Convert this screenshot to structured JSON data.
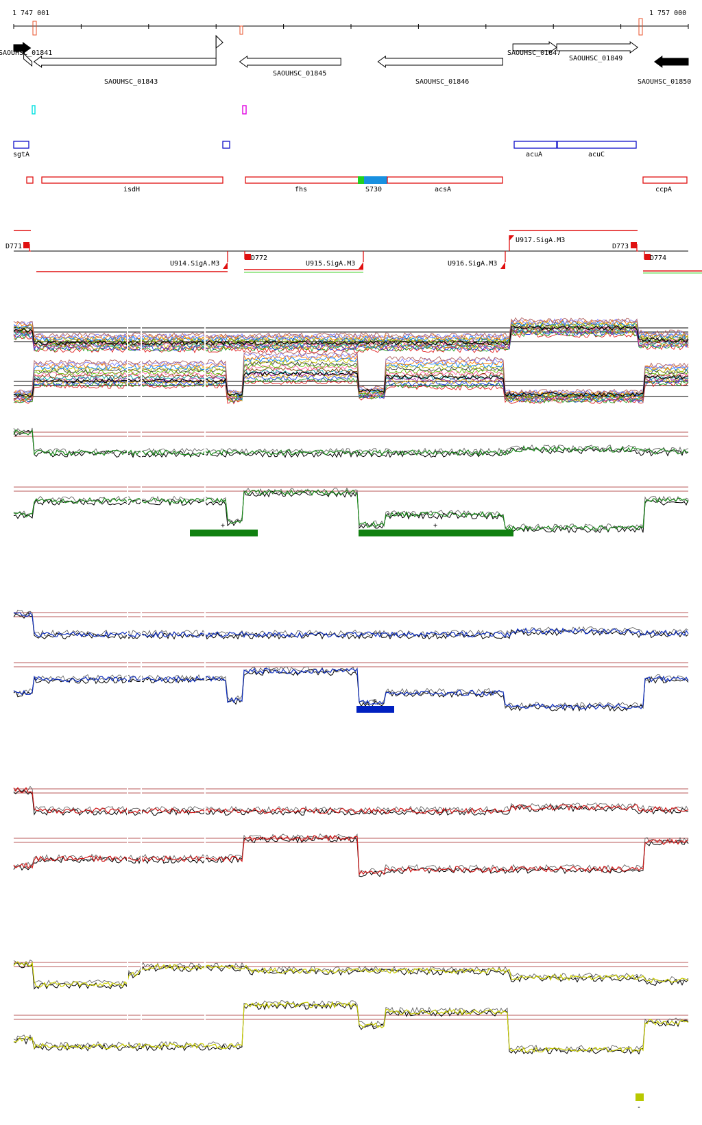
{
  "coords": {
    "start": "1 747 001",
    "end": "1 757 000",
    "start_bp": 1747001,
    "end_bp": 1757000
  },
  "colors": {
    "arrow": "#000000",
    "tick_red": "#e8502a",
    "cyan": "#00e0e0",
    "magenta": "#e000e0",
    "blue_box": "#1010c8",
    "red_box": "#e01010",
    "green_seg": "#20d020",
    "blue_seg": "#1890e0",
    "dark_red_ref": "#a02020",
    "green_track": "#1a8a1a",
    "blue_track": "#1030c0",
    "red_track": "#d01818",
    "yellow_track": "#c8cc00",
    "ccpA_green_line": "#80e070",
    "green_bar": "#108010",
    "blue_bar": "#0020c0",
    "yellow_square": "#b8c800"
  },
  "genes": [
    {
      "id": "SAOUHSC_01841",
      "label": "SAOUHSC_01841",
      "start": 1747001,
      "end": 1747250,
      "strand": "+",
      "filled": true
    },
    {
      "id": "SAOUHSC_01843",
      "label": "SAOUHSC_01843",
      "start": 1747200,
      "end": 1750000,
      "strand": "-",
      "filled": false
    },
    {
      "id": "SAOUHSC_01845",
      "label": "SAOUHSC_01845",
      "start": 1750350,
      "end": 1751850,
      "strand": "-",
      "filled": false
    },
    {
      "id": "SAOUHSC_01846",
      "label": "SAOUHSC_01846",
      "start": 1752400,
      "end": 1754250,
      "strand": "-",
      "filled": false
    },
    {
      "id": "SAOUHSC_01847",
      "label": "SAOUHSC_01847",
      "start": 1754400,
      "end": 1755050,
      "strand": "+",
      "filled": false
    },
    {
      "id": "SAOUHSC_01849",
      "label": "SAOUHSC_01849",
      "start": 1755050,
      "end": 1756250,
      "strand": "+",
      "filled": false
    },
    {
      "id": "SAOUHSC_01850",
      "label": "SAOUHSC_01850",
      "start": 1756500,
      "end": 1757000,
      "strand": "-",
      "filled": true
    }
  ],
  "blue_features": [
    {
      "label": "sgtA",
      "start": 1747001,
      "end": 1747220
    },
    {
      "label": "",
      "start": 1750100,
      "end": 1750200
    },
    {
      "label": "acuA",
      "start": 1754400,
      "end": 1755050
    },
    {
      "label": "acuC",
      "start": 1755050,
      "end": 1756250
    }
  ],
  "red_features": [
    {
      "label": "",
      "start": 1747200,
      "end": 1747300
    },
    {
      "label": "isdH",
      "start": 1747430,
      "end": 1750100
    },
    {
      "label": "fhs",
      "start": 1750420,
      "end": 1752100
    },
    {
      "label": "S730",
      "start": 1752100,
      "end": 1752470
    },
    {
      "label": "acsA",
      "start": 1752470,
      "end": 1754250
    },
    {
      "label": "ccpA",
      "start": 1756500,
      "end": 1757000
    }
  ],
  "segments": [
    {
      "label": "U914.SigA.M3"
    },
    {
      "label": "D772"
    },
    {
      "label": "U915.SigA.M3"
    },
    {
      "label": "U916.SigA.M3"
    },
    {
      "label": "U917.SigA.M3"
    },
    {
      "label": "D771"
    },
    {
      "label": "D773"
    },
    {
      "label": "D774"
    }
  ],
  "condition_bars": [
    {
      "label": "+",
      "color_key": "green_bar"
    },
    {
      "label": "+",
      "color_key": "green_bar"
    },
    {
      "label": "+",
      "color_key": "blue_bar"
    },
    {
      "label": "-",
      "color_key": "yellow_square"
    }
  ]
}
